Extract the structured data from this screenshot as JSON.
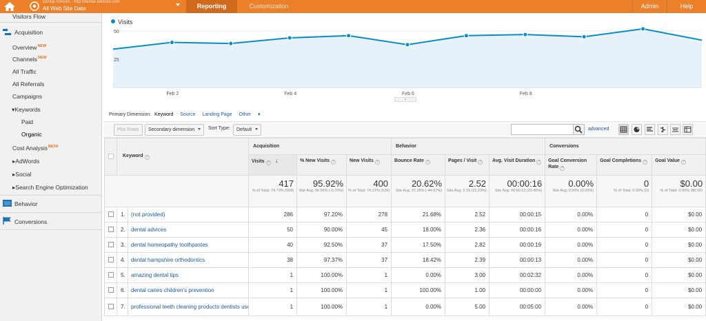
{
  "topbar": {
    "account_url": "Dental Advices - http://dental-advices.com",
    "account_name": "All Web Site Data",
    "tabs": [
      "Reporting",
      "Customization"
    ],
    "admin": "Admin",
    "help": "Help",
    "color": "#ec7f2a"
  },
  "sidebar": {
    "items": [
      {
        "label": "Visitors Flow"
      },
      {
        "label": "Acquisition"
      },
      {
        "label": "Overview",
        "badge": "NEW"
      },
      {
        "label": "Channels",
        "badge": "NEW"
      },
      {
        "label": "All Traffic"
      },
      {
        "label": "All Referrals"
      },
      {
        "label": "Campaigns"
      },
      {
        "label": "Keywords"
      },
      {
        "label": "Paid"
      },
      {
        "label": "Organic"
      },
      {
        "label": "Cost Analysis",
        "badge": "BETA"
      },
      {
        "label": "AdWords"
      },
      {
        "label": "Social"
      },
      {
        "label": "Search Engine Optimization"
      },
      {
        "label": "Behavior"
      },
      {
        "label": "Conversions"
      }
    ]
  },
  "chart_data": {
    "type": "area",
    "series": [
      {
        "name": "Visits",
        "values": [
          34,
          40,
          39,
          44,
          46,
          38,
          46,
          47,
          45,
          52,
          42
        ]
      }
    ],
    "y_ticks": [
      "50",
      "25"
    ],
    "x_ticks": [
      "Feb 2",
      "Feb 4",
      "Feb 6",
      "Feb 8"
    ],
    "ylim": [
      0,
      55
    ],
    "color": "#058dc7"
  },
  "controls": {
    "primary_dimension_label": "Primary Dimension:",
    "dims": [
      "Keyword",
      "Source",
      "Landing Page",
      "Other"
    ],
    "plot_rows": "Plot Rows",
    "secondary_dimension": "Secondary dimension",
    "sort_type_label": "Sort Type:",
    "sort_type_value": "Default",
    "advanced": "advanced"
  },
  "table": {
    "groups": [
      "Acquisition",
      "Behavior",
      "Conversions"
    ],
    "keyword_header": "Keyword",
    "headers": [
      "Visits",
      "% New Visits",
      "New Visits",
      "Bounce Rate",
      "Pages / Visit",
      "Avg. Visit Duration",
      "Goal Conversion Rate",
      "Goal Completions",
      "Goal Value"
    ],
    "totals": [
      {
        "big": "417",
        "sub": "% of Total: 74.73% (558)"
      },
      {
        "big": "95.92%",
        "sub": "Site Avg: 96.59% (-0.70%)"
      },
      {
        "big": "400",
        "sub": "% of Total: 74.21% (539)"
      },
      {
        "big": "20.62%",
        "sub": "Site Avg: 37.28% (-44.67%)"
      },
      {
        "big": "2.52",
        "sub": "Site Avg: 2.19 (15.23%)"
      },
      {
        "big": "00:00:16",
        "sub": "Site Avg: 00:00:13 (20.45%)"
      },
      {
        "big": "0.00%",
        "sub": "Site Avg: 0.00% (0.00%)"
      },
      {
        "big": "0",
        "sub": "% of Total: 0.00% (0)"
      },
      {
        "big": "$0.00",
        "sub": "% of Total: 0.00% ($0.00)"
      }
    ],
    "rows": [
      {
        "n": "1.",
        "kw": "(not provided)",
        "v": [
          "286",
          "97.20%",
          "278",
          "21.68%",
          "2.52",
          "00:00:15",
          "0.00%",
          "0",
          "$0.00"
        ]
      },
      {
        "n": "2.",
        "kw": "dental advices",
        "v": [
          "50",
          "90.00%",
          "45",
          "18.00%",
          "2.36",
          "00:00:16",
          "0.00%",
          "0",
          "$0.00"
        ]
      },
      {
        "n": "3.",
        "kw": "dental homeopathy toothpastes",
        "v": [
          "40",
          "92.50%",
          "37",
          "17.50%",
          "2.82",
          "00:00:19",
          "0.00%",
          "0",
          "$0.00"
        ]
      },
      {
        "n": "4.",
        "kw": "dental hampshire orthodontics",
        "v": [
          "38",
          "97.37%",
          "37",
          "18.42%",
          "2.39",
          "00:00:13",
          "0.00%",
          "0",
          "$0.00"
        ]
      },
      {
        "n": "5.",
        "kw": "amazing dental tips",
        "v": [
          "1",
          "100.00%",
          "1",
          "0.00%",
          "3.00",
          "00:02:32",
          "0.00%",
          "0",
          "$0.00"
        ]
      },
      {
        "n": "6.",
        "kw": "dental caries children's prevention",
        "v": [
          "1",
          "100.00%",
          "1",
          "100.00%",
          "1.00",
          "00:00:00",
          "0.00%",
          "0",
          "$0.00"
        ]
      },
      {
        "n": "7.",
        "kw": "professional teeth cleaning products dentists use",
        "v": [
          "1",
          "100.00%",
          "1",
          "0.00%",
          "5.00",
          "00:05:00",
          "0.00%",
          "0",
          "$0.00"
        ]
      }
    ]
  }
}
